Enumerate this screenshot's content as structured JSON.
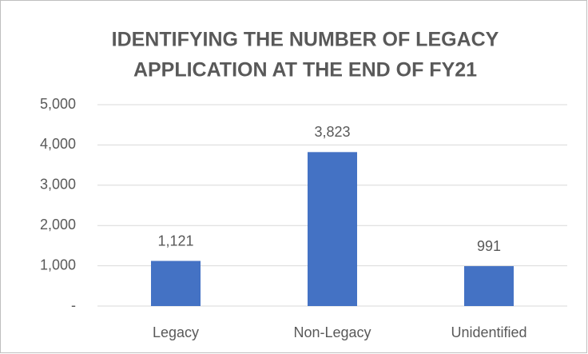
{
  "chart_data": {
    "type": "bar",
    "title": [
      "IDENTIFYING THE NUMBER OF LEGACY",
      "APPLICATION AT THE END OF FY21"
    ],
    "categories": [
      "Legacy",
      "Non-Legacy",
      "Unidentified"
    ],
    "values": [
      1121,
      3823,
      991
    ],
    "value_labels": [
      "1,121",
      "3,823",
      "991"
    ],
    "color": "#4472c4",
    "ylim": [
      0,
      5000
    ],
    "yticks": [
      {
        "value": 0,
        "label": "-"
      },
      {
        "value": 1000,
        "label": "1,000"
      },
      {
        "value": 2000,
        "label": "2,000"
      },
      {
        "value": 3000,
        "label": "3,000"
      },
      {
        "value": 4000,
        "label": "4,000"
      },
      {
        "value": 5000,
        "label": "5,000"
      }
    ],
    "grid": true
  }
}
